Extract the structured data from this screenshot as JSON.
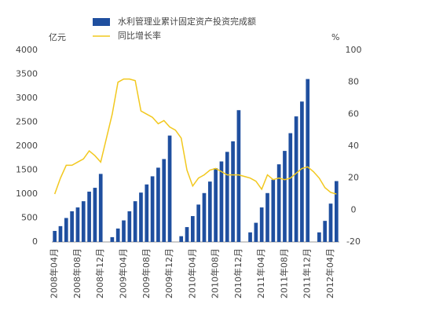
{
  "chart_data": {
    "type": "bar-line",
    "y_label": "亿元",
    "y2_label": "%",
    "categories": [
      "2008年04月",
      null,
      null,
      null,
      "2008年08月",
      null,
      null,
      null,
      "2008年12月",
      null,
      null,
      null,
      "2009年04月",
      null,
      null,
      null,
      "2009年08月",
      null,
      null,
      null,
      "2009年12月",
      null,
      null,
      null,
      "2010年04月",
      null,
      null,
      null,
      "2010年08月",
      null,
      null,
      null,
      "2010年12月",
      null,
      null,
      null,
      "2011年04月",
      null,
      null,
      null,
      "2011年08月",
      null,
      null,
      null,
      "2011年12月",
      null,
      null,
      null,
      "2012年04月",
      null
    ],
    "series": [
      {
        "name": "水利管理业累计固定资产投资完成额",
        "type": "bar",
        "color": "#1f4f9f",
        "values": [
          230,
          330,
          500,
          640,
          720,
          850,
          1050,
          1130,
          1420,
          null,
          100,
          280,
          450,
          640,
          850,
          1030,
          1200,
          1370,
          1550,
          1730,
          2220,
          null,
          120,
          310,
          540,
          780,
          1020,
          1260,
          1540,
          1680,
          1880,
          2100,
          2750,
          null,
          200,
          400,
          720,
          1020,
          1300,
          1620,
          1900,
          2270,
          2620,
          2930,
          3400,
          null,
          200,
          440,
          800,
          1270
        ]
      },
      {
        "name": "同比增长率",
        "type": "line",
        "axis": "y2",
        "color": "#f2c81e",
        "values": [
          10,
          20,
          28,
          28,
          30,
          32,
          37,
          34,
          30,
          45,
          60,
          80,
          82,
          82,
          81,
          62,
          60,
          58,
          54,
          56,
          52,
          50,
          45,
          25,
          15,
          20,
          22,
          25,
          26,
          24,
          22,
          22,
          22,
          21,
          20,
          18,
          13,
          22,
          19,
          20,
          19,
          20,
          23,
          26,
          27,
          24,
          20,
          14,
          11,
          10
        ]
      }
    ],
    "ylim": [
      0,
      4000
    ],
    "yticks": [
      0,
      500,
      1000,
      1500,
      2000,
      2500,
      3000,
      3500,
      4000
    ],
    "y2lim": [
      -20,
      100
    ],
    "y2ticks": [
      -20,
      0,
      20,
      40,
      60,
      80,
      100
    ]
  }
}
